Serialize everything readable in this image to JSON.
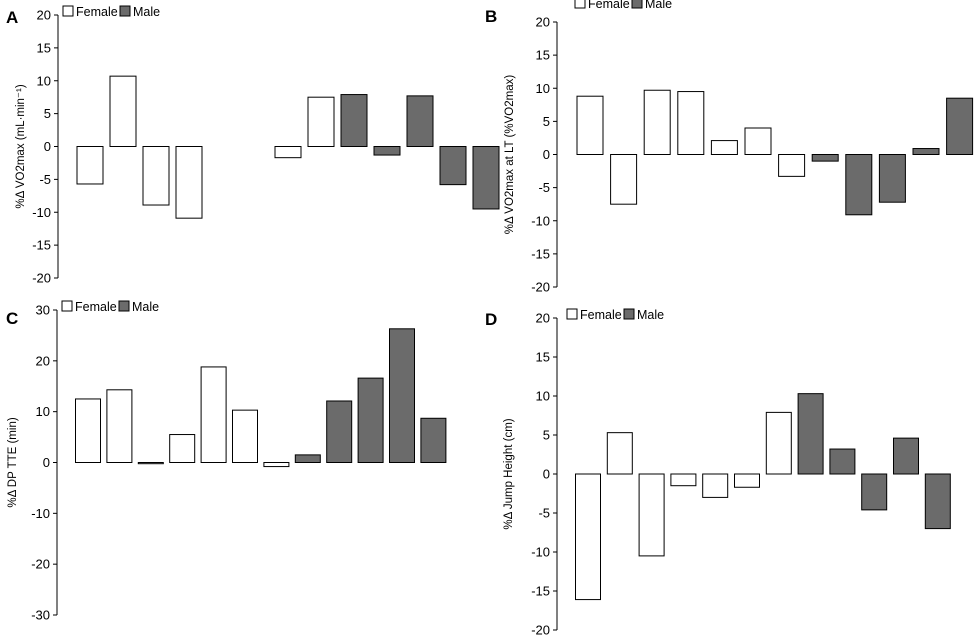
{
  "chart_data": [
    {
      "panel": "A",
      "type": "bar",
      "ylabel": "%Δ VO2max (mL·min⁻¹)",
      "ylim": [
        -20,
        20
      ],
      "yticks": [
        20,
        15,
        10,
        5,
        0,
        -5,
        -10,
        -15,
        -20
      ],
      "legend": [
        "Female",
        "Male"
      ],
      "bars": [
        {
          "value": -5.7,
          "group": "Female"
        },
        {
          "value": 10.7,
          "group": "Female"
        },
        {
          "value": -8.9,
          "group": "Female"
        },
        {
          "value": -10.9,
          "group": "Female"
        },
        {
          "value": null,
          "group": "Female"
        },
        {
          "value": null,
          "group": "Female"
        },
        {
          "value": -1.7,
          "group": "Female"
        },
        {
          "value": 7.5,
          "group": "Female"
        },
        {
          "value": 7.9,
          "group": "Male"
        },
        {
          "value": -1.3,
          "group": "Male"
        },
        {
          "value": 7.7,
          "group": "Male"
        },
        {
          "value": -5.8,
          "group": "Male"
        },
        {
          "value": -9.5,
          "group": "Male"
        }
      ]
    },
    {
      "panel": "B",
      "type": "bar",
      "ylabel": "%Δ VO2max at LT (%VO2max)",
      "ylim": [
        -20,
        20
      ],
      "yticks": [
        20,
        15,
        10,
        5,
        0,
        -5,
        -10,
        -15,
        -20
      ],
      "legend": [
        "Female",
        "Male"
      ],
      "bars": [
        {
          "value": 8.8,
          "group": "Female"
        },
        {
          "value": -7.5,
          "group": "Female"
        },
        {
          "value": 9.7,
          "group": "Female"
        },
        {
          "value": 9.5,
          "group": "Female"
        },
        {
          "value": 2.1,
          "group": "Female"
        },
        {
          "value": 4.0,
          "group": "Female"
        },
        {
          "value": -3.3,
          "group": "Female"
        },
        {
          "value": -1.0,
          "group": "Male"
        },
        {
          "value": -9.1,
          "group": "Male"
        },
        {
          "value": -7.2,
          "group": "Male"
        },
        {
          "value": 0.9,
          "group": "Male"
        },
        {
          "value": 8.5,
          "group": "Male"
        }
      ]
    },
    {
      "panel": "C",
      "type": "bar",
      "ylabel": "%Δ DP TTE (min)",
      "ylim": [
        -30,
        30
      ],
      "yticks": [
        30,
        20,
        10,
        0,
        -10,
        -20,
        -30
      ],
      "legend": [
        "Female",
        "Male"
      ],
      "bars": [
        {
          "value": 12.5,
          "group": "Female"
        },
        {
          "value": 14.3,
          "group": "Female"
        },
        {
          "value": -0.2,
          "group": "Female"
        },
        {
          "value": 5.5,
          "group": "Female"
        },
        {
          "value": 18.8,
          "group": "Female"
        },
        {
          "value": 10.3,
          "group": "Female"
        },
        {
          "value": -0.8,
          "group": "Female"
        },
        {
          "value": 1.5,
          "group": "Male"
        },
        {
          "value": 12.1,
          "group": "Male"
        },
        {
          "value": 16.6,
          "group": "Male"
        },
        {
          "value": 26.3,
          "group": "Male"
        },
        {
          "value": 8.7,
          "group": "Male"
        }
      ]
    },
    {
      "panel": "D",
      "type": "bar",
      "ylabel": "%Δ Jump Height (cm)",
      "ylim": [
        -20,
        20
      ],
      "yticks": [
        20,
        15,
        10,
        5,
        0,
        -5,
        -10,
        -15,
        -20
      ],
      "legend": [
        "Female",
        "Male"
      ],
      "bars": [
        {
          "value": -16.1,
          "group": "Female"
        },
        {
          "value": 5.3,
          "group": "Female"
        },
        {
          "value": -10.5,
          "group": "Female"
        },
        {
          "value": -1.5,
          "group": "Female"
        },
        {
          "value": -3.0,
          "group": "Female"
        },
        {
          "value": -1.7,
          "group": "Female"
        },
        {
          "value": 7.9,
          "group": "Female"
        },
        {
          "value": 10.3,
          "group": "Male"
        },
        {
          "value": 3.2,
          "group": "Male"
        },
        {
          "value": -4.6,
          "group": "Male"
        },
        {
          "value": 4.6,
          "group": "Male"
        },
        {
          "value": -7.0,
          "group": "Male"
        }
      ]
    }
  ],
  "colors": {
    "female_fill": "#ffffff",
    "male_fill": "#6b6b6b",
    "bar_stroke": "#000000",
    "axis": "#000000"
  }
}
